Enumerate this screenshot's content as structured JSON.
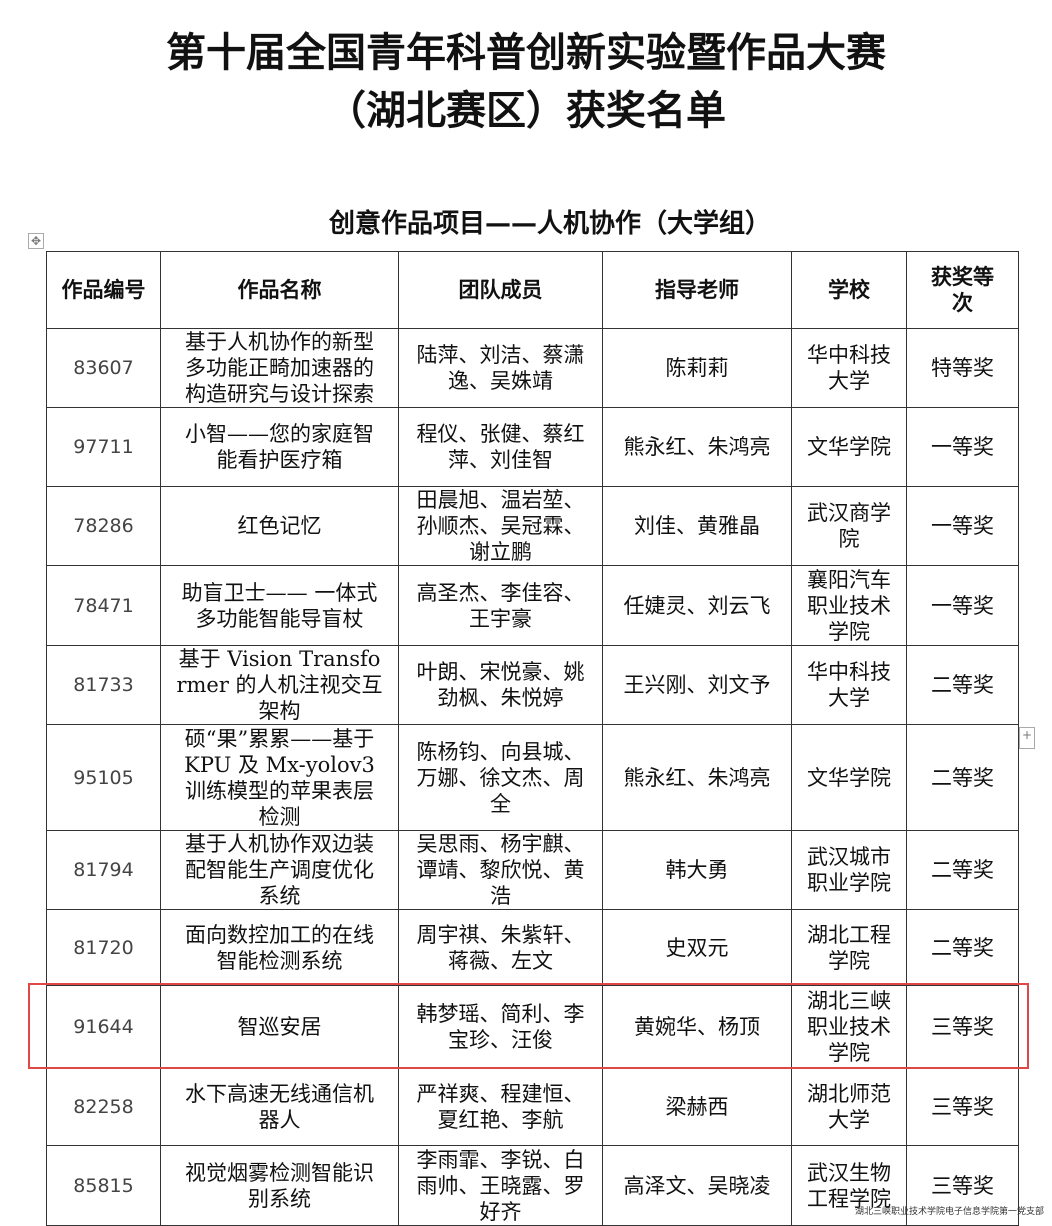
{
  "header": {
    "title_lines": [
      "第十届全国青年科普创新实验暨作品大赛",
      "（湖北赛区）获奖名单"
    ],
    "subtitle": "创意作品项目——人机协作（大学组）"
  },
  "table": {
    "columns": [
      "作品编号",
      "作品名称",
      "团队成员",
      "指导老师",
      "学校",
      "获奖等次"
    ],
    "rows": [
      [
        "83607",
        "基于人机协作的新型多功能正畸加速器的构造研究与设计探索",
        "陆萍、刘洁、蔡潇逸、吴姝靖",
        "陈莉莉",
        "华中科技大学",
        "特等奖"
      ],
      [
        "97711",
        "小智——您的家庭智能看护医疗箱",
        "程仪、张健、蔡红萍、刘佳智",
        "熊永红、朱鸿亮",
        "文华学院",
        "一等奖"
      ],
      [
        "78286",
        "红色记忆",
        "田晨旭、温岩堃、孙顺杰、吴冠霖、谢立鹏",
        "刘佳、黄雅晶",
        "武汉商学院",
        "一等奖"
      ],
      [
        "78471",
        "助盲卫士—— 一体式多功能智能导盲杖",
        "高圣杰、李佳容、王宇豪",
        "任婕灵、刘云飞",
        "襄阳汽车职业技术学院",
        "一等奖"
      ],
      [
        "81733",
        "基于 Vision Transformer 的人机注视交互架构",
        "叶朗、宋悦豪、姚劲枫、朱悦婷",
        "王兴刚、刘文予",
        "华中科技大学",
        "二等奖"
      ],
      [
        "95105",
        "硕“果”累累——基于 KPU 及 Mx-yolov3 训练模型的苹果表层检测",
        "陈杨钧、向县城、万娜、徐文杰、周全",
        "熊永红、朱鸿亮",
        "文华学院",
        "二等奖"
      ],
      [
        "81794",
        "基于人机协作双边装配智能生产调度优化系统",
        "吴思雨、杨宇麒、谭靖、黎欣悦、黄浩",
        "韩大勇",
        "武汉城市职业学院",
        "二等奖"
      ],
      [
        "81720",
        "面向数控加工的在线智能检测系统",
        "周宇祺、朱紫轩、蒋薇、左文",
        "史双元",
        "湖北工程学院",
        "二等奖"
      ],
      [
        "91644",
        "智巡安居",
        "韩梦瑶、简利、李宝珍、汪俊",
        "黄婉华、杨顶",
        "湖北三峡职业技术学院",
        "三等奖"
      ],
      [
        "82258",
        "水下高速无线通信机器人",
        "严祥爽、程建恒、夏红艳、李航",
        "梁赫西",
        "湖北师范大学",
        "三等奖"
      ],
      [
        "85815",
        "视觉烟雾检测智能识别系统",
        "李雨霏、李锐、白雨帅、王晓露、罗好齐",
        "高泽文、吴晓凌",
        "武汉生物工程学院",
        "三等奖"
      ]
    ]
  },
  "watermark": "湖北三峡职业技术学院电子信息学院第一党支部"
}
